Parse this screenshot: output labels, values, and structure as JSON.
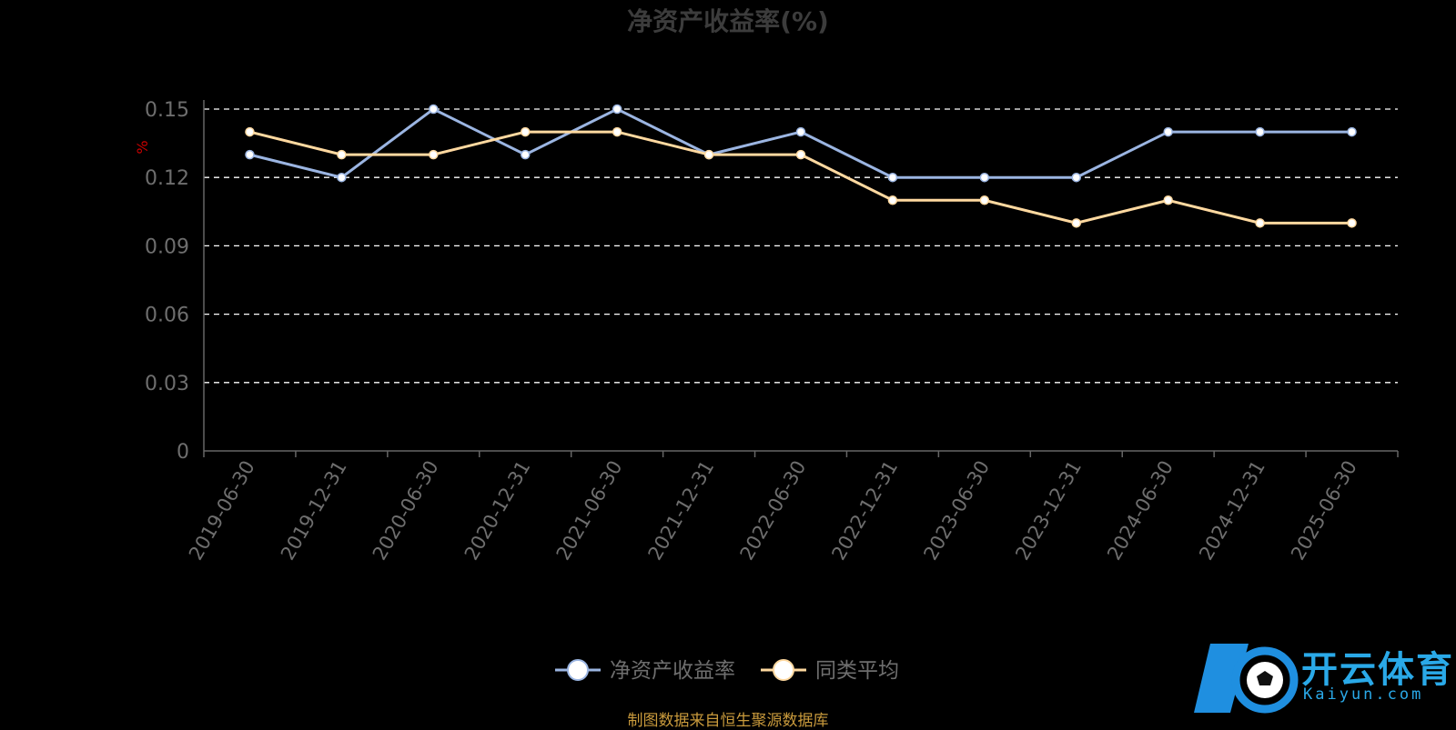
{
  "title": "净资产收益率(%)",
  "source": "制图数据来自恒生聚源数据库",
  "logo": {
    "name": "开云体育",
    "domain": "Kaiyun.com"
  },
  "colors": {
    "series1": "#9bb5e2",
    "series2": "#ffd9a0",
    "grid": "#ffffff",
    "axis": "#666666",
    "tick_text": "#6e6e6e",
    "unit": "#cc0000"
  },
  "chart_data": {
    "type": "line",
    "title": "净资产收益率(%)",
    "ylabel": "%",
    "ylim": [
      0,
      0.15
    ],
    "yticks": [
      "0",
      "0.03",
      "0.06",
      "0.09",
      "0.12",
      "0.15"
    ],
    "grid": true,
    "legend_position": "bottom-center",
    "categories": [
      "2019-06-30",
      "2019-12-31",
      "2020-06-30",
      "2020-12-31",
      "2021-06-30",
      "2021-12-31",
      "2022-06-30",
      "2022-12-31",
      "2023-06-30",
      "2023-12-31",
      "2024-06-30",
      "2024-12-31",
      "2025-06-30"
    ],
    "series": [
      {
        "name": "净资产收益率",
        "values": [
          0.13,
          0.12,
          0.15,
          0.13,
          0.15,
          0.13,
          0.14,
          0.12,
          0.12,
          0.12,
          0.14,
          0.14,
          0.14
        ]
      },
      {
        "name": "同类平均",
        "values": [
          0.14,
          0.13,
          0.13,
          0.14,
          0.14,
          0.13,
          0.13,
          0.11,
          0.11,
          0.1,
          0.11,
          0.1,
          0.1
        ]
      }
    ]
  }
}
